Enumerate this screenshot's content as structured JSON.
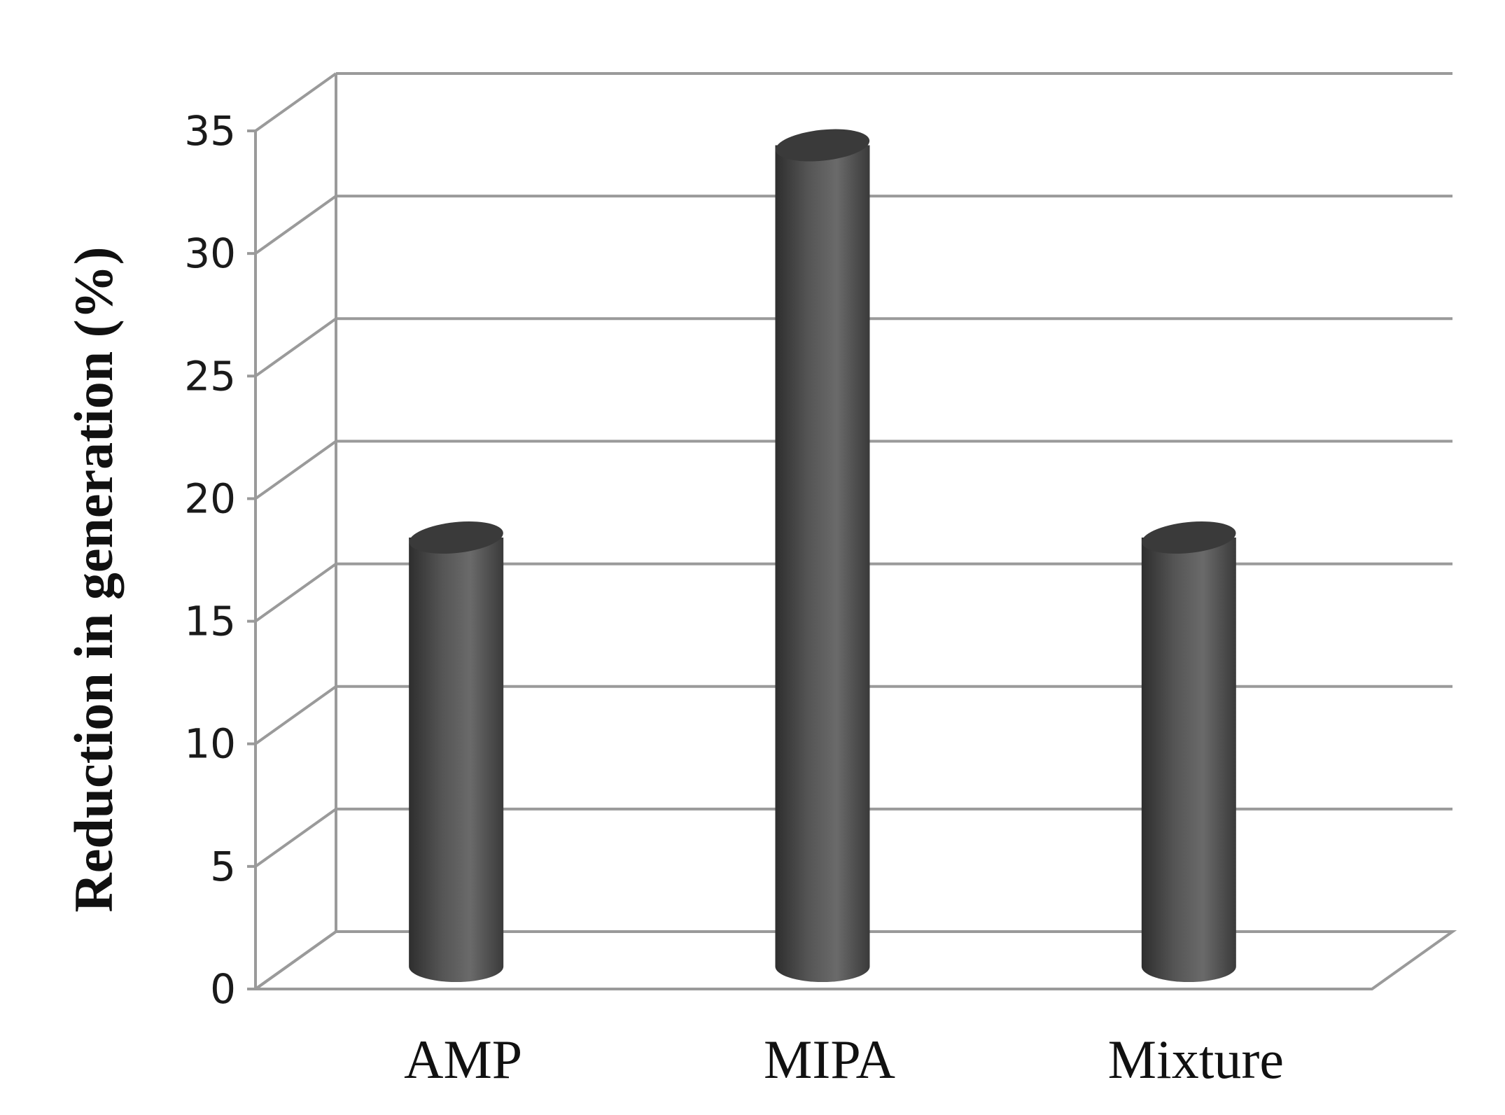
{
  "chart_data": {
    "type": "bar",
    "style": "3d-cylinder",
    "title": "",
    "xlabel": "",
    "ylabel": "Reduction in generation (%)",
    "categories": [
      "AMP",
      "MIPA",
      "Mixture"
    ],
    "values": [
      17.5,
      33.5,
      17.5
    ],
    "ylim": [
      0,
      35
    ],
    "yticks": [
      "0",
      "5",
      "10",
      "15",
      "20",
      "25",
      "30",
      "35"
    ],
    "grid": true,
    "legend": "none",
    "colors": {
      "bar_dark": "#303030",
      "bar_light": "#6a6a6a",
      "bar_top": "#3a3a3a",
      "gridline": "#9a9a9a",
      "text": "#111111"
    }
  }
}
